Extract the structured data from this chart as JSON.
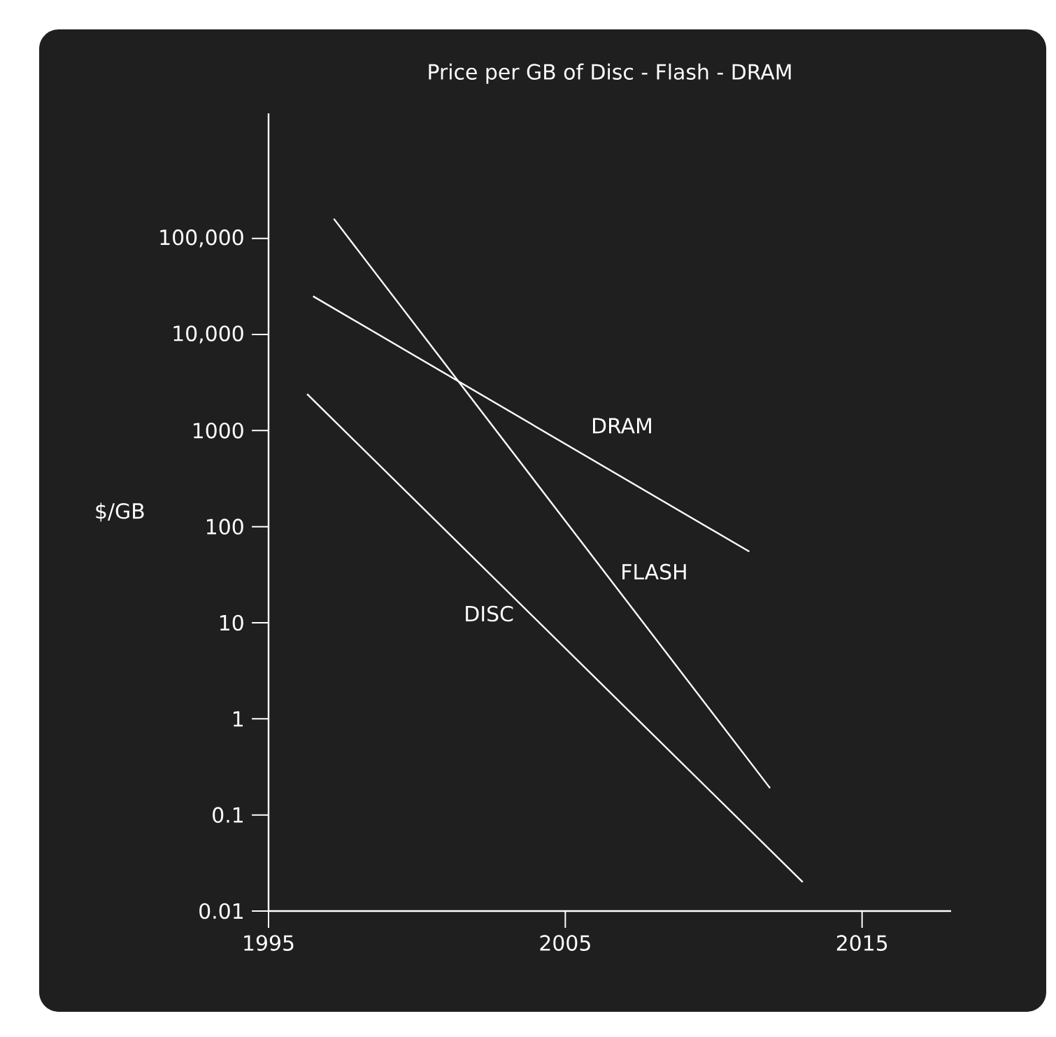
{
  "chart_data": {
    "type": "line",
    "title": "Price per GB of Disc - Flash - DRAM",
    "ylabel": "$/GB",
    "log": "y",
    "xlim": [
      1995,
      2018
    ],
    "ylim": [
      0.01,
      2000000
    ],
    "xticks": [
      1995,
      2005,
      2015
    ],
    "yticks": [
      {
        "value": 0.01,
        "label": "0.01"
      },
      {
        "value": 0.1,
        "label": "0.1"
      },
      {
        "value": 1,
        "label": "1"
      },
      {
        "value": 10,
        "label": "10"
      },
      {
        "value": 100,
        "label": "100"
      },
      {
        "value": 1000,
        "label": "1000"
      },
      {
        "value": 10000,
        "label": "10,000"
      },
      {
        "value": 100000,
        "label": "100,000"
      }
    ],
    "grid": false,
    "legend": false,
    "marker": "none",
    "line_style": "solid",
    "series": [
      {
        "name": "DRAM",
        "color": "#ffffff",
        "x": [
          1996.5,
          2011.2
        ],
        "values": [
          25000,
          55
        ]
      },
      {
        "name": "FLASH",
        "color": "#ffffff",
        "x": [
          1997.2,
          2011.9
        ],
        "values": [
          160000,
          0.19
        ]
      },
      {
        "name": "DISC",
        "color": "#ffffff",
        "x": [
          1996.3,
          2013.0
        ],
        "values": [
          2400,
          0.02
        ]
      }
    ]
  }
}
